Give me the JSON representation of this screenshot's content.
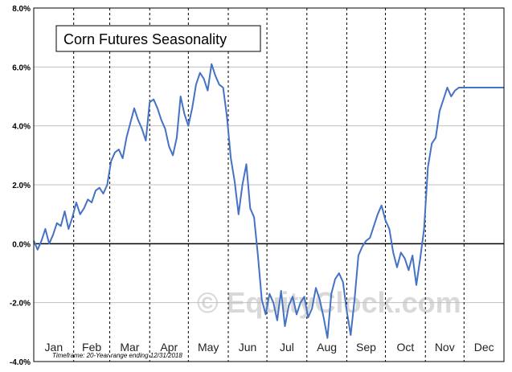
{
  "title": "Corn Futures Seasonality",
  "watermark": "© EquityClock.com",
  "footnote": "Timeframe:  20-Year range ending 12/31/2018",
  "colors": {
    "line": "#4472c4",
    "grid": "#bfbfbf",
    "frame": "#000000"
  },
  "chart_data": {
    "type": "line",
    "title": "Corn Futures Seasonality",
    "xlabel": "",
    "ylabel": "",
    "ylim": [
      -4.0,
      8.0
    ],
    "x_range_days": [
      0,
      365
    ],
    "y_ticks": [
      "8.0%",
      "6.0%",
      "4.0%",
      "2.0%",
      "0.0%",
      "-2.0%",
      "-4.0%"
    ],
    "month_labels": [
      "Jan",
      "Feb",
      "Mar",
      "Apr",
      "May",
      "Jun",
      "Jul",
      "Aug",
      "Sep",
      "Oct",
      "Nov",
      "Dec"
    ],
    "grid": true,
    "legend": "none",
    "series": [
      {
        "x": [
          0,
          3,
          6,
          9,
          12,
          15,
          18,
          21,
          24,
          27,
          30,
          33,
          36,
          39,
          42,
          45,
          48,
          51,
          54,
          57,
          60,
          63,
          66,
          69,
          72,
          75,
          78,
          81,
          84,
          87,
          90,
          93,
          96,
          99,
          102,
          105,
          108,
          111,
          114,
          117,
          120,
          123,
          126,
          129,
          132,
          135,
          138,
          141,
          144,
          147,
          150,
          153,
          156,
          159,
          162,
          165,
          168,
          171,
          174,
          177,
          180,
          183,
          186,
          189,
          192,
          195,
          198,
          201,
          204,
          207,
          210,
          213,
          216,
          219,
          222,
          225,
          228,
          231,
          234,
          237,
          240,
          243,
          246,
          249,
          252,
          255,
          258,
          261,
          264,
          267,
          270,
          273,
          276,
          279,
          282,
          285,
          288,
          291,
          294,
          297,
          300,
          303,
          306,
          309,
          312,
          315,
          318,
          321,
          324,
          327,
          330,
          333,
          336,
          339,
          342,
          345,
          348,
          351,
          354,
          357,
          360,
          363,
          365
        ],
        "y": [
          0.1,
          -0.2,
          0.1,
          0.5,
          0.0,
          0.3,
          0.7,
          0.6,
          1.1,
          0.5,
          0.9,
          1.4,
          1.0,
          1.2,
          1.5,
          1.4,
          1.8,
          1.9,
          1.7,
          2.0,
          2.8,
          3.1,
          3.2,
          2.9,
          3.6,
          4.1,
          4.6,
          4.2,
          3.9,
          3.5,
          4.8,
          4.9,
          4.6,
          4.2,
          3.9,
          3.3,
          3.0,
          3.6,
          5.0,
          4.4,
          4.0,
          4.6,
          5.4,
          5.8,
          5.6,
          5.2,
          6.1,
          5.7,
          5.4,
          5.3,
          4.3,
          2.9,
          2.1,
          1.0,
          2.0,
          2.7,
          1.2,
          0.9,
          -0.4,
          -1.9,
          -2.4,
          -1.7,
          -2.0,
          -2.6,
          -1.6,
          -2.8,
          -2.1,
          -1.8,
          -2.4,
          -2.0,
          -1.8,
          -2.5,
          -2.2,
          -1.5,
          -1.9,
          -2.5,
          -3.2,
          -1.7,
          -1.2,
          -1.0,
          -1.3,
          -2.3,
          -3.1,
          -1.9,
          -0.4,
          -0.1,
          0.1,
          0.2,
          0.6,
          1.0,
          1.3,
          0.8,
          0.5,
          -0.3,
          -0.8,
          -0.3,
          -0.5,
          -0.9,
          -0.4,
          -1.4,
          -0.5,
          0.5,
          2.6,
          3.4,
          3.6,
          4.5,
          4.9,
          5.3,
          5.0,
          5.2,
          5.3,
          5.3,
          5.3,
          5.3,
          5.3,
          5.3,
          5.3,
          5.3,
          5.3,
          5.3,
          5.3,
          5.3,
          5.3
        ]
      }
    ]
  }
}
